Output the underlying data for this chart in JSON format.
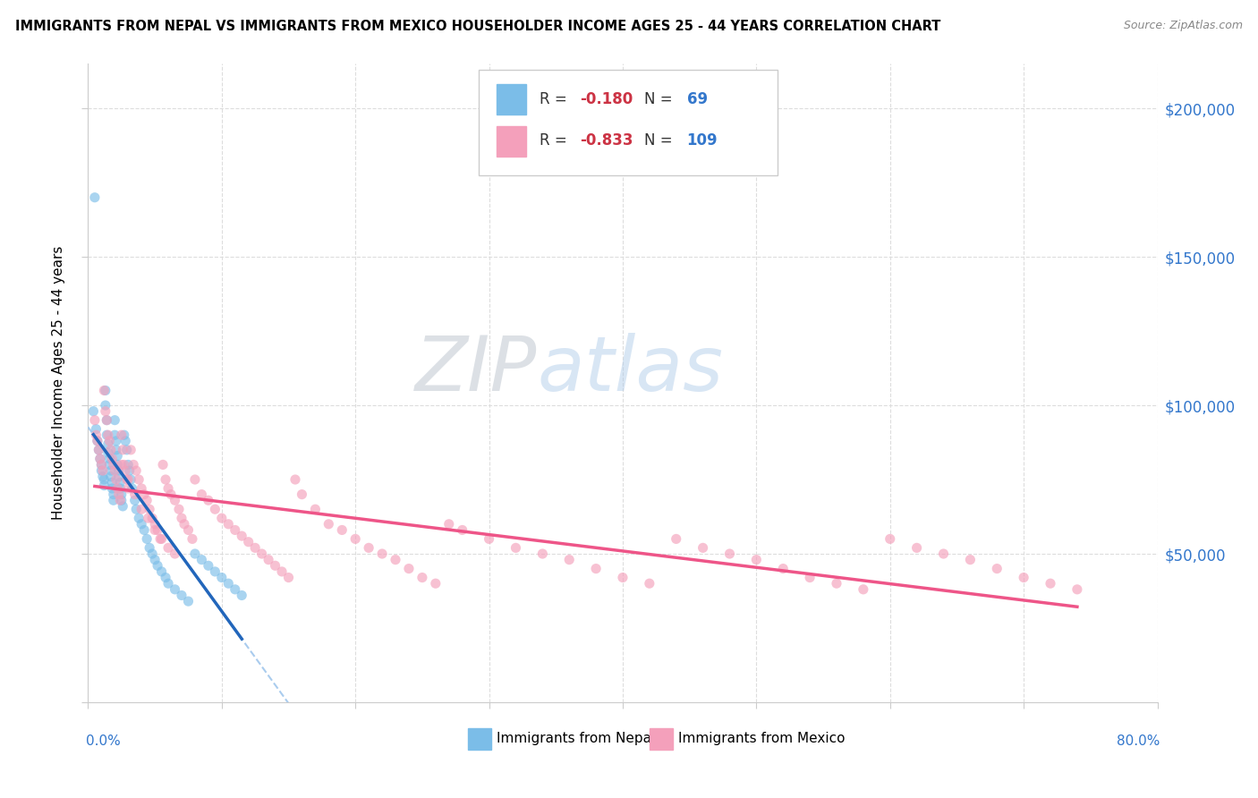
{
  "title": "IMMIGRANTS FROM NEPAL VS IMMIGRANTS FROM MEXICO HOUSEHOLDER INCOME AGES 25 - 44 YEARS CORRELATION CHART",
  "source": "Source: ZipAtlas.com",
  "ylabel": "Householder Income Ages 25 - 44 years",
  "ytick_values": [
    0,
    50000,
    100000,
    150000,
    200000
  ],
  "xlim": [
    0.0,
    0.8
  ],
  "ylim": [
    0,
    215000
  ],
  "nepal_R": -0.18,
  "nepal_N": 69,
  "mexico_R": -0.833,
  "mexico_N": 109,
  "nepal_color": "#7bbde8",
  "mexico_color": "#f4a0bb",
  "nepal_line_color": "#2266bb",
  "mexico_line_color": "#ee5588",
  "nepal_dashed_color": "#aaccee",
  "background_color": "#ffffff",
  "nepal_x": [
    0.004,
    0.005,
    0.006,
    0.007,
    0.008,
    0.009,
    0.01,
    0.01,
    0.011,
    0.012,
    0.012,
    0.013,
    0.013,
    0.014,
    0.014,
    0.015,
    0.015,
    0.016,
    0.016,
    0.017,
    0.017,
    0.018,
    0.018,
    0.019,
    0.019,
    0.02,
    0.02,
    0.021,
    0.021,
    0.022,
    0.022,
    0.023,
    0.023,
    0.024,
    0.024,
    0.025,
    0.025,
    0.026,
    0.027,
    0.028,
    0.029,
    0.03,
    0.031,
    0.032,
    0.033,
    0.035,
    0.036,
    0.038,
    0.04,
    0.042,
    0.044,
    0.046,
    0.048,
    0.05,
    0.052,
    0.055,
    0.058,
    0.06,
    0.065,
    0.07,
    0.075,
    0.08,
    0.085,
    0.09,
    0.095,
    0.1,
    0.105,
    0.11,
    0.115
  ],
  "nepal_y": [
    98000,
    170000,
    92000,
    88000,
    85000,
    82000,
    80000,
    78000,
    76000,
    75000,
    73000,
    105000,
    100000,
    95000,
    90000,
    87000,
    84000,
    82000,
    80000,
    78000,
    76000,
    74000,
    72000,
    70000,
    68000,
    95000,
    90000,
    88000,
    85000,
    83000,
    80000,
    78000,
    76000,
    74000,
    72000,
    70000,
    68000,
    66000,
    90000,
    88000,
    85000,
    80000,
    78000,
    75000,
    72000,
    68000,
    65000,
    62000,
    60000,
    58000,
    55000,
    52000,
    50000,
    48000,
    46000,
    44000,
    42000,
    40000,
    38000,
    36000,
    34000,
    50000,
    48000,
    46000,
    44000,
    42000,
    40000,
    38000,
    36000
  ],
  "mexico_x": [
    0.005,
    0.006,
    0.007,
    0.008,
    0.009,
    0.01,
    0.011,
    0.012,
    0.013,
    0.014,
    0.015,
    0.016,
    0.017,
    0.018,
    0.019,
    0.02,
    0.021,
    0.022,
    0.023,
    0.024,
    0.025,
    0.026,
    0.027,
    0.028,
    0.029,
    0.03,
    0.032,
    0.034,
    0.036,
    0.038,
    0.04,
    0.042,
    0.044,
    0.046,
    0.048,
    0.05,
    0.052,
    0.054,
    0.056,
    0.058,
    0.06,
    0.062,
    0.065,
    0.068,
    0.07,
    0.072,
    0.075,
    0.078,
    0.08,
    0.085,
    0.09,
    0.095,
    0.1,
    0.105,
    0.11,
    0.115,
    0.12,
    0.125,
    0.13,
    0.135,
    0.14,
    0.145,
    0.15,
    0.155,
    0.16,
    0.17,
    0.18,
    0.19,
    0.2,
    0.21,
    0.22,
    0.23,
    0.24,
    0.25,
    0.26,
    0.27,
    0.28,
    0.3,
    0.32,
    0.34,
    0.36,
    0.38,
    0.4,
    0.42,
    0.44,
    0.46,
    0.48,
    0.5,
    0.52,
    0.54,
    0.56,
    0.58,
    0.6,
    0.62,
    0.64,
    0.66,
    0.68,
    0.7,
    0.72,
    0.74,
    0.025,
    0.03,
    0.035,
    0.04,
    0.045,
    0.05,
    0.055,
    0.06,
    0.065
  ],
  "mexico_y": [
    95000,
    90000,
    88000,
    85000,
    82000,
    80000,
    78000,
    105000,
    98000,
    95000,
    90000,
    88000,
    85000,
    82000,
    80000,
    78000,
    75000,
    72000,
    70000,
    68000,
    90000,
    85000,
    80000,
    78000,
    75000,
    72000,
    85000,
    80000,
    78000,
    75000,
    72000,
    70000,
    68000,
    65000,
    62000,
    60000,
    58000,
    55000,
    80000,
    75000,
    72000,
    70000,
    68000,
    65000,
    62000,
    60000,
    58000,
    55000,
    75000,
    70000,
    68000,
    65000,
    62000,
    60000,
    58000,
    56000,
    54000,
    52000,
    50000,
    48000,
    46000,
    44000,
    42000,
    75000,
    70000,
    65000,
    60000,
    58000,
    55000,
    52000,
    50000,
    48000,
    45000,
    42000,
    40000,
    60000,
    58000,
    55000,
    52000,
    50000,
    48000,
    45000,
    42000,
    40000,
    55000,
    52000,
    50000,
    48000,
    45000,
    42000,
    40000,
    38000,
    55000,
    52000,
    50000,
    48000,
    45000,
    42000,
    40000,
    38000,
    80000,
    75000,
    70000,
    65000,
    62000,
    58000,
    55000,
    52000,
    50000
  ]
}
